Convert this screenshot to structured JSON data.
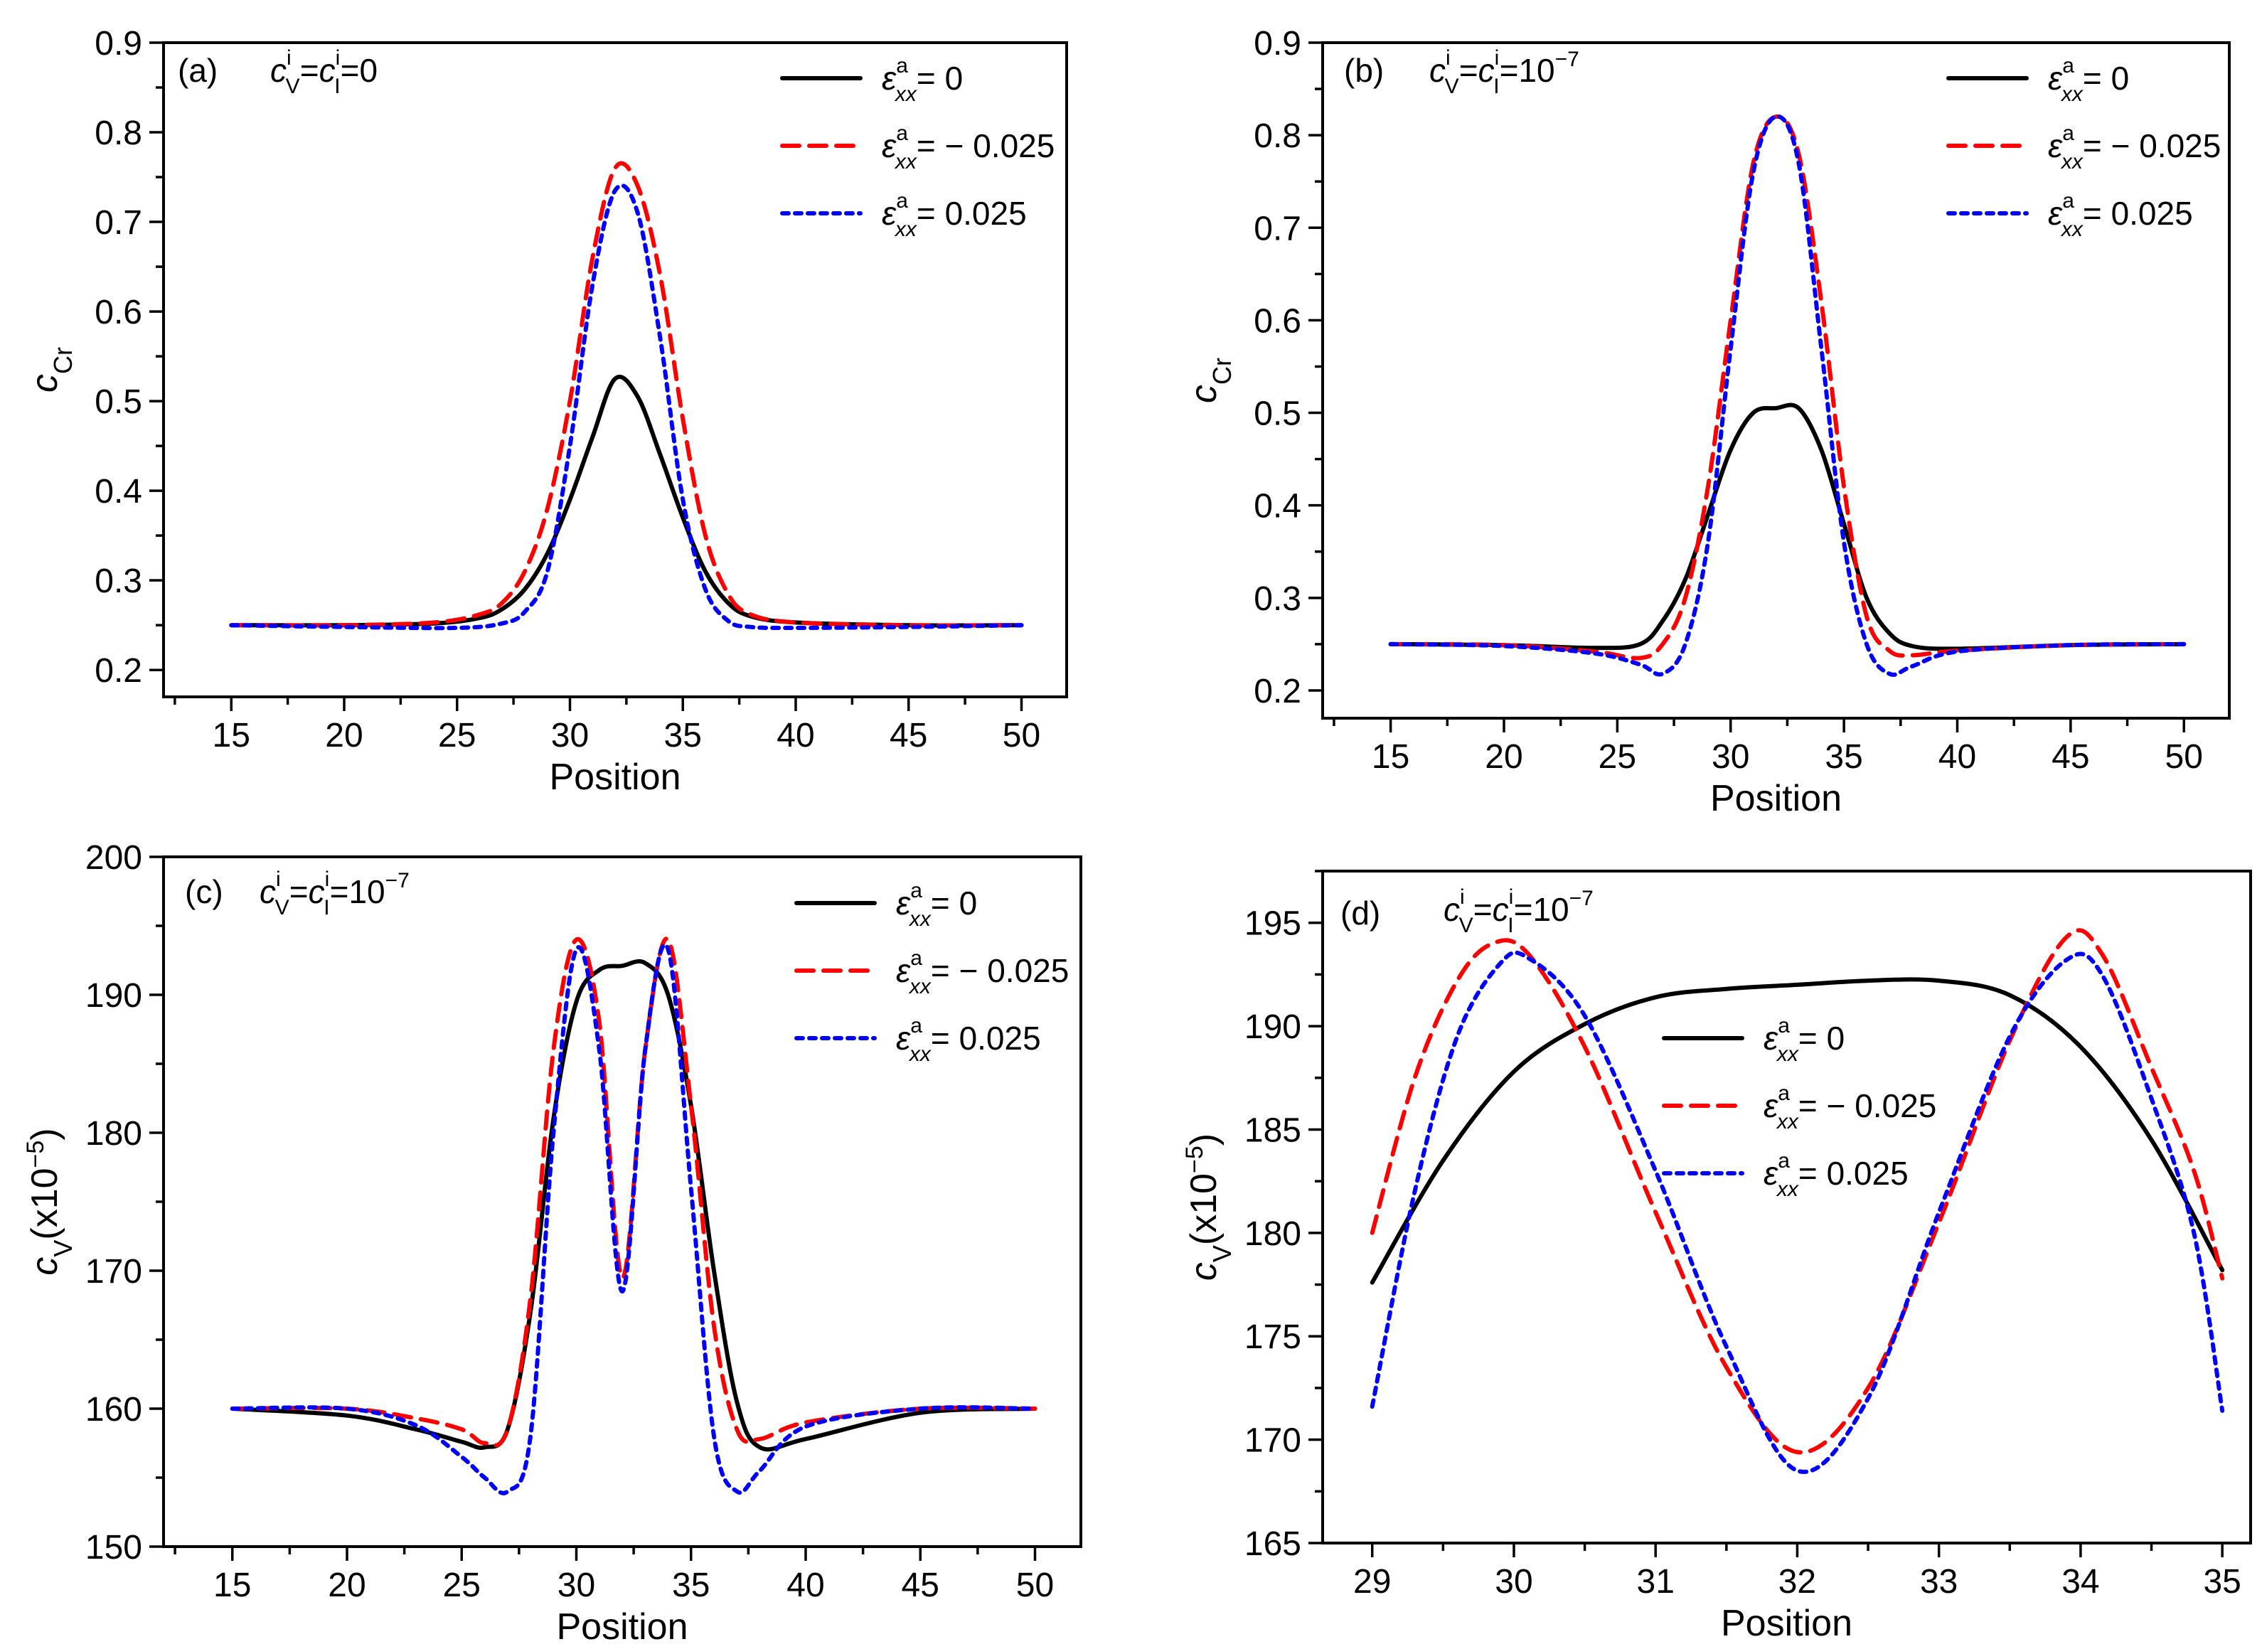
{
  "chart_data": [
    {
      "id": "a",
      "type": "line",
      "tag": "(a)",
      "condition": {
        "c": "c",
        "v_sub": "V",
        "i_sup": "i",
        "eq": "=",
        "c2": "c",
        "i_sub": "I",
        "i_sup2": "i",
        "rhs": "=0",
        "rhs_base": "",
        "rhs_exp": ""
      },
      "xlabel": "Position",
      "ylabel": {
        "main": "c",
        "sub": "Cr",
        "tail": ""
      },
      "xlim": [
        12,
        52
      ],
      "ylim": [
        0.17,
        0.9
      ],
      "xticks": [
        15,
        20,
        25,
        30,
        35,
        40,
        45,
        50
      ],
      "yticks": [
        0.2,
        0.3,
        0.4,
        0.5,
        0.6,
        0.7,
        0.8,
        0.9
      ],
      "ytick_decimals": 1,
      "legend_position": "top-right",
      "series": [
        {
          "name": "0",
          "color": "#000000",
          "dash": "solid",
          "points": [
            [
              15,
              0.25
            ],
            [
              20,
              0.25
            ],
            [
              24,
              0.252
            ],
            [
              26,
              0.258
            ],
            [
              27,
              0.268
            ],
            [
              28,
              0.29
            ],
            [
              29,
              0.33
            ],
            [
              30,
              0.39
            ],
            [
              31,
              0.46
            ],
            [
              32,
              0.525
            ],
            [
              33,
              0.505
            ],
            [
              34,
              0.44
            ],
            [
              35,
              0.37
            ],
            [
              36,
              0.31
            ],
            [
              37,
              0.275
            ],
            [
              38,
              0.26
            ],
            [
              40,
              0.253
            ],
            [
              45,
              0.25
            ],
            [
              50,
              0.25
            ]
          ]
        },
        {
          "name": "− 0.025",
          "color": "#ff0000",
          "dash": "dashed",
          "points": [
            [
              15,
              0.25
            ],
            [
              20,
              0.25
            ],
            [
              24,
              0.253
            ],
            [
              26,
              0.262
            ],
            [
              27,
              0.275
            ],
            [
              28,
              0.31
            ],
            [
              29,
              0.38
            ],
            [
              30,
              0.5
            ],
            [
              31,
              0.66
            ],
            [
              32,
              0.76
            ],
            [
              33,
              0.74
            ],
            [
              34,
              0.64
            ],
            [
              35,
              0.48
            ],
            [
              36,
              0.35
            ],
            [
              37,
              0.285
            ],
            [
              38,
              0.262
            ],
            [
              40,
              0.253
            ],
            [
              45,
              0.25
            ],
            [
              50,
              0.25
            ]
          ]
        },
        {
          "name": "0.025",
          "color": "#0000ff",
          "dash": "dotted",
          "points": [
            [
              15,
              0.25
            ],
            [
              20,
              0.248
            ],
            [
              25,
              0.247
            ],
            [
              27,
              0.252
            ],
            [
              28,
              0.265
            ],
            [
              29,
              0.31
            ],
            [
              30,
              0.45
            ],
            [
              31,
              0.63
            ],
            [
              32,
              0.735
            ],
            [
              33,
              0.71
            ],
            [
              34,
              0.57
            ],
            [
              35,
              0.39
            ],
            [
              36,
              0.29
            ],
            [
              37,
              0.255
            ],
            [
              38,
              0.248
            ],
            [
              40,
              0.247
            ],
            [
              45,
              0.248
            ],
            [
              50,
              0.25
            ]
          ]
        }
      ]
    },
    {
      "id": "b",
      "type": "line",
      "tag": "(b)",
      "condition": {
        "c": "c",
        "v_sub": "V",
        "i_sup": "i",
        "eq": "=",
        "c2": "c",
        "i_sub": "I",
        "i_sup2": "i",
        "rhs": "",
        "rhs_base": "=10",
        "rhs_exp": "−7"
      },
      "xlabel": "Position",
      "ylabel": {
        "main": "c",
        "sub": "Cr",
        "tail": ""
      },
      "xlim": [
        12,
        52
      ],
      "ylim": [
        0.17,
        0.9
      ],
      "xticks": [
        15,
        20,
        25,
        30,
        35,
        40,
        45,
        50
      ],
      "yticks": [
        0.2,
        0.3,
        0.4,
        0.5,
        0.6,
        0.7,
        0.8,
        0.9
      ],
      "ytick_decimals": 1,
      "legend_position": "top-right",
      "series": [
        {
          "name": "0",
          "color": "#000000",
          "dash": "solid",
          "points": [
            [
              15,
              0.25
            ],
            [
              20,
              0.249
            ],
            [
              24,
              0.246
            ],
            [
              26,
              0.25
            ],
            [
              27,
              0.275
            ],
            [
              28,
              0.32
            ],
            [
              29,
              0.39
            ],
            [
              30,
              0.46
            ],
            [
              31,
              0.5
            ],
            [
              32,
              0.505
            ],
            [
              33,
              0.505
            ],
            [
              34,
              0.46
            ],
            [
              35,
              0.38
            ],
            [
              36,
              0.3
            ],
            [
              37,
              0.262
            ],
            [
              38,
              0.248
            ],
            [
              40,
              0.245
            ],
            [
              45,
              0.249
            ],
            [
              50,
              0.25
            ]
          ]
        },
        {
          "name": "− 0.025",
          "color": "#ff0000",
          "dash": "dashed",
          "points": [
            [
              15,
              0.25
            ],
            [
              20,
              0.249
            ],
            [
              24,
              0.242
            ],
            [
              26,
              0.235
            ],
            [
              27,
              0.25
            ],
            [
              28,
              0.3
            ],
            [
              29,
              0.42
            ],
            [
              30,
              0.6
            ],
            [
              31,
              0.77
            ],
            [
              32,
              0.82
            ],
            [
              33,
              0.78
            ],
            [
              34,
              0.62
            ],
            [
              35,
              0.42
            ],
            [
              36,
              0.28
            ],
            [
              37,
              0.243
            ],
            [
              38,
              0.238
            ],
            [
              40,
              0.243
            ],
            [
              45,
              0.249
            ],
            [
              50,
              0.25
            ]
          ]
        },
        {
          "name": "0.025",
          "color": "#0000ff",
          "dash": "dotted",
          "points": [
            [
              15,
              0.25
            ],
            [
              20,
              0.248
            ],
            [
              24,
              0.24
            ],
            [
              26,
              0.228
            ],
            [
              27,
              0.218
            ],
            [
              28,
              0.25
            ],
            [
              29,
              0.36
            ],
            [
              30,
              0.57
            ],
            [
              31,
              0.76
            ],
            [
              32,
              0.82
            ],
            [
              33,
              0.77
            ],
            [
              34,
              0.57
            ],
            [
              35,
              0.36
            ],
            [
              36,
              0.25
            ],
            [
              37,
              0.218
            ],
            [
              38,
              0.226
            ],
            [
              40,
              0.242
            ],
            [
              45,
              0.249
            ],
            [
              50,
              0.25
            ]
          ]
        }
      ]
    },
    {
      "id": "c",
      "type": "line",
      "tag": "(c)",
      "condition": {
        "c": "c",
        "v_sub": "V",
        "i_sup": "i",
        "eq": "=",
        "c2": "c",
        "i_sub": "I",
        "i_sup2": "i",
        "rhs": "",
        "rhs_base": "=10",
        "rhs_exp": "−7"
      },
      "xlabel": "Position",
      "ylabel": {
        "main": "c",
        "sub": "V",
        "tail": "(x10",
        "tail_exp": "−5",
        "tail_end": ")"
      },
      "xlim": [
        12,
        52
      ],
      "ylim": [
        150,
        200
      ],
      "xticks": [
        15,
        20,
        25,
        30,
        35,
        40,
        45,
        50
      ],
      "yticks": [
        150,
        160,
        170,
        180,
        190,
        200
      ],
      "ytick_decimals": 0,
      "legend_position": "top-right",
      "series": [
        {
          "name": "0",
          "color": "#000000",
          "dash": "solid",
          "points": [
            [
              15,
              160
            ],
            [
              20,
              159.5
            ],
            [
              23,
              158.5
            ],
            [
              25,
              157.6
            ],
            [
              26,
              157.2
            ],
            [
              27,
              158.5
            ],
            [
              28,
              167
            ],
            [
              29,
              181
            ],
            [
              30,
              189.5
            ],
            [
              31,
              191.8
            ],
            [
              32,
              192.1
            ],
            [
              33,
              192.3
            ],
            [
              34,
              190
            ],
            [
              35,
              182
            ],
            [
              36,
              170
            ],
            [
              37,
              160.5
            ],
            [
              38,
              157.2
            ],
            [
              40,
              157.8
            ],
            [
              45,
              159.7
            ],
            [
              50,
              160
            ]
          ]
        },
        {
          "name": "− 0.025",
          "color": "#ff0000",
          "dash": "dashed",
          "points": [
            [
              15,
              160
            ],
            [
              20,
              160
            ],
            [
              23,
              159.3
            ],
            [
              25,
              158.5
            ],
            [
              26,
              157.5
            ],
            [
              27,
              158.5
            ],
            [
              28,
              168
            ],
            [
              29,
              186
            ],
            [
              30,
              194
            ],
            [
              31,
              188
            ],
            [
              32,
              169.5
            ],
            [
              33,
              186
            ],
            [
              34,
              194
            ],
            [
              35,
              182
            ],
            [
              36,
              166
            ],
            [
              37,
              158.5
            ],
            [
              38,
              157.8
            ],
            [
              40,
              159
            ],
            [
              45,
              160
            ],
            [
              50,
              160
            ]
          ]
        },
        {
          "name": "0.025",
          "color": "#0000ff",
          "dash": "dotted",
          "points": [
            [
              15,
              160
            ],
            [
              20,
              160
            ],
            [
              23,
              158.8
            ],
            [
              25,
              156.5
            ],
            [
              26,
              155
            ],
            [
              27,
              154
            ],
            [
              28,
              158
            ],
            [
              29,
              180
            ],
            [
              30,
              193.3
            ],
            [
              31,
              186
            ],
            [
              32,
              168.5
            ],
            [
              33,
              186
            ],
            [
              34,
              193.3
            ],
            [
              35,
              176
            ],
            [
              36,
              158
            ],
            [
              37,
              154
            ],
            [
              38,
              155.5
            ],
            [
              40,
              158.7
            ],
            [
              45,
              160
            ],
            [
              50,
              160
            ]
          ]
        }
      ]
    },
    {
      "id": "d",
      "type": "line",
      "tag": "(d)",
      "condition": {
        "c": "c",
        "v_sub": "V",
        "i_sup": "i",
        "eq": "=",
        "c2": "c",
        "i_sub": "I",
        "i_sup2": "i",
        "rhs": "",
        "rhs_base": "=10",
        "rhs_exp": "−7"
      },
      "xlabel": "Position",
      "ylabel": {
        "main": "c",
        "sub": "V",
        "tail": "(x10",
        "tail_exp": "−5",
        "tail_end": ")"
      },
      "xlim": [
        28.65,
        35.2
      ],
      "ylim": [
        165,
        197.5
      ],
      "xticks": [
        29,
        30,
        31,
        32,
        33,
        34,
        35
      ],
      "yticks": [
        165,
        170,
        175,
        180,
        185,
        190,
        195
      ],
      "ytick_decimals": 0,
      "legend_position": "center",
      "series": [
        {
          "name": "0",
          "color": "#000000",
          "dash": "solid",
          "points": [
            [
              29,
              177.6
            ],
            [
              29.5,
              183.5
            ],
            [
              30,
              187.8
            ],
            [
              30.5,
              190.1
            ],
            [
              31,
              191.4
            ],
            [
              31.5,
              191.8
            ],
            [
              32,
              192
            ],
            [
              32.5,
              192.2
            ],
            [
              33,
              192.2
            ],
            [
              33.5,
              191.5
            ],
            [
              34,
              189
            ],
            [
              34.5,
              184.5
            ],
            [
              35,
              178.2
            ]
          ]
        },
        {
          "name": "− 0.025",
          "color": "#ff0000",
          "dash": "dashed",
          "points": [
            [
              29,
              180
            ],
            [
              29.3,
              187.5
            ],
            [
              29.6,
              192.2
            ],
            [
              29.85,
              194
            ],
            [
              30.1,
              193.5
            ],
            [
              30.5,
              189
            ],
            [
              31,
              181
            ],
            [
              31.5,
              173.5
            ],
            [
              32,
              169.4
            ],
            [
              32.5,
              172.5
            ],
            [
              33,
              180.5
            ],
            [
              33.5,
              189.3
            ],
            [
              33.9,
              194.3
            ],
            [
              34.15,
              193.5
            ],
            [
              34.5,
              188
            ],
            [
              34.8,
              183
            ],
            [
              35,
              177.8
            ]
          ]
        },
        {
          "name": "0.025",
          "color": "#0000ff",
          "dash": "dotted",
          "points": [
            [
              29,
              171.6
            ],
            [
              29.3,
              182
            ],
            [
              29.6,
              189.5
            ],
            [
              29.9,
              193
            ],
            [
              30.1,
              193.3
            ],
            [
              30.5,
              190.5
            ],
            [
              31,
              183
            ],
            [
              31.5,
              174.5
            ],
            [
              32,
              168.5
            ],
            [
              32.5,
              172
            ],
            [
              33,
              181
            ],
            [
              33.5,
              189.5
            ],
            [
              33.9,
              193.2
            ],
            [
              34.15,
              192.5
            ],
            [
              34.5,
              186.5
            ],
            [
              34.8,
              180
            ],
            [
              35,
              171.4
            ]
          ]
        }
      ]
    }
  ]
}
